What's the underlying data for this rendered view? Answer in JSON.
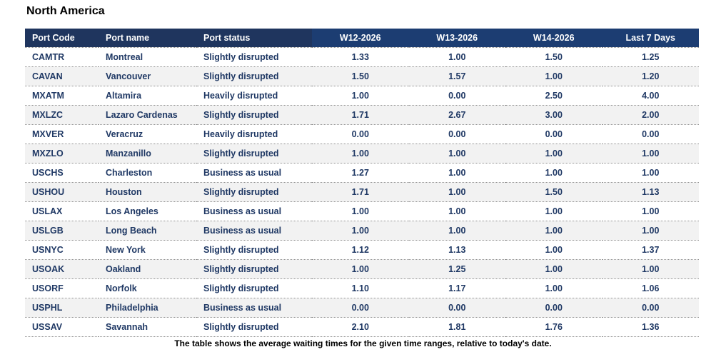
{
  "title": "North America",
  "caption": "The table shows the average waiting times for the given time ranges, relative to today's date.",
  "table": {
    "columns": [
      "Port Code",
      "Port name",
      "Port status",
      "W12-2026",
      "W13-2026",
      "W14-2026",
      "Last 7 Days"
    ],
    "rows": [
      {
        "code": "CAMTR",
        "name": "Montreal",
        "status": "Slightly disrupted",
        "values": [
          "1.33",
          "1.00",
          "1.50",
          "1.25"
        ]
      },
      {
        "code": "CAVAN",
        "name": "Vancouver",
        "status": "Slightly disrupted",
        "values": [
          "1.50",
          "1.57",
          "1.00",
          "1.20"
        ]
      },
      {
        "code": "MXATM",
        "name": "Altamira",
        "status": "Heavily disrupted",
        "values": [
          "1.00",
          "0.00",
          "2.50",
          "4.00"
        ]
      },
      {
        "code": "MXLZC",
        "name": "Lazaro Cardenas",
        "status": "Slightly disrupted",
        "values": [
          "1.71",
          "2.67",
          "3.00",
          "2.00"
        ]
      },
      {
        "code": "MXVER",
        "name": "Veracruz",
        "status": "Heavily disrupted",
        "values": [
          "0.00",
          "0.00",
          "0.00",
          "0.00"
        ]
      },
      {
        "code": "MXZLO",
        "name": "Manzanillo",
        "status": "Slightly disrupted",
        "values": [
          "1.00",
          "1.00",
          "1.00",
          "1.00"
        ]
      },
      {
        "code": "USCHS",
        "name": "Charleston",
        "status": "Business as usual",
        "values": [
          "1.27",
          "1.00",
          "1.00",
          "1.00"
        ]
      },
      {
        "code": "USHOU",
        "name": "Houston",
        "status": "Slightly disrupted",
        "values": [
          "1.71",
          "1.00",
          "1.50",
          "1.13"
        ]
      },
      {
        "code": "USLAX",
        "name": "Los Angeles",
        "status": "Business as usual",
        "values": [
          "1.00",
          "1.00",
          "1.00",
          "1.00"
        ]
      },
      {
        "code": "USLGB",
        "name": "Long Beach",
        "status": "Business as usual",
        "values": [
          "1.00",
          "1.00",
          "1.00",
          "1.00"
        ]
      },
      {
        "code": "USNYC",
        "name": "New York",
        "status": "Slightly disrupted",
        "values": [
          "1.12",
          "1.13",
          "1.00",
          "1.37"
        ]
      },
      {
        "code": "USOAK",
        "name": "Oakland",
        "status": "Slightly disrupted",
        "values": [
          "1.00",
          "1.25",
          "1.00",
          "1.00"
        ]
      },
      {
        "code": "USORF",
        "name": "Norfolk",
        "status": "Slightly disrupted",
        "values": [
          "1.10",
          "1.17",
          "1.00",
          "1.06"
        ]
      },
      {
        "code": "USPHL",
        "name": "Philadelphia",
        "status": "Business as usual",
        "values": [
          "0.00",
          "0.00",
          "0.00",
          "0.00"
        ]
      },
      {
        "code": "USSAV",
        "name": "Savannah",
        "status": "Slightly disrupted",
        "values": [
          "2.10",
          "1.81",
          "1.76",
          "1.36"
        ]
      }
    ]
  },
  "colors": {
    "header_bg_left": "#1F355E",
    "header_bg_right": "#1C3D72",
    "header_text": "#FFFFFF",
    "body_text": "#1F3864",
    "row_stripe": "#F2F2F2",
    "row_border": "#8F8F8F"
  }
}
